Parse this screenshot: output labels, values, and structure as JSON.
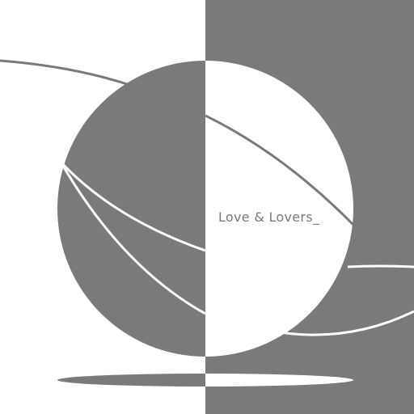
{
  "artwork": {
    "title": "Love & Lovers_",
    "colors": {
      "light": "#ffffff",
      "dark": "#7a7a7a"
    }
  }
}
